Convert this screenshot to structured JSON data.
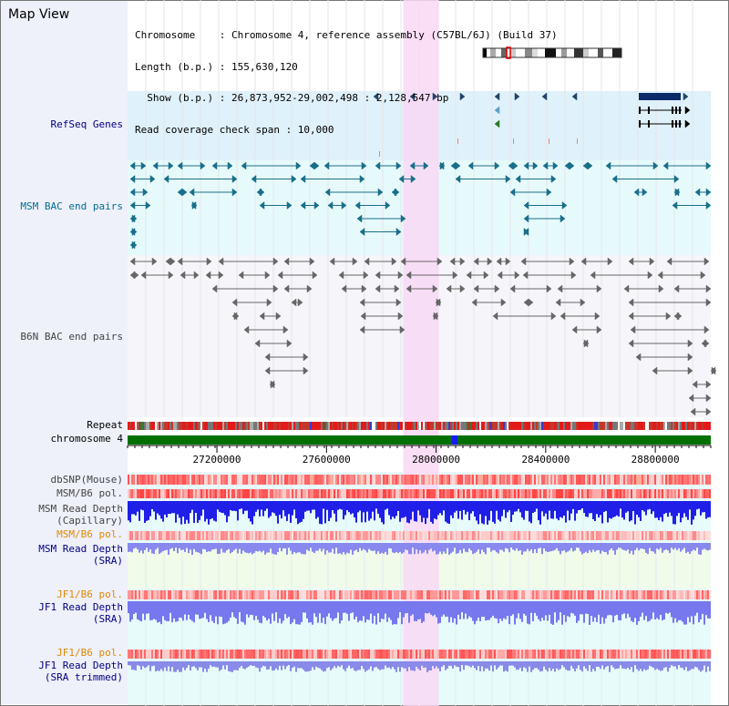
{
  "title": "Map View",
  "header": {
    "line1": "Chromosome    : Chromosome 4, reference assembly (C57BL/6J) (Build 37)",
    "line2": "Length (b.p.) : 155,630,120",
    "line3": "  Show (b.p.) : 26,873,952-29,002,498 : 2,128,547 bp",
    "line4": "Read coverage check span : 10,000"
  },
  "tracks": {
    "refseq": "RefSeq Genes",
    "msm_bac": "MSM BAC end pairs",
    "b6n_bac": "B6N BAC end pairs",
    "repeat": "Repeat",
    "chromosome": "chromosome 4",
    "dbsnp": "dbSNP(Mouse)",
    "msm_b6_pol_1": "MSM/B6 pol.",
    "msm_depth_cap_1": "MSM Read Depth",
    "msm_depth_cap_2": "(Capillary)",
    "msm_b6_pol_2": "MSM/B6 pol.",
    "msm_depth_sra_1": "MSM Read Depth",
    "msm_depth_sra_2": "(SRA)",
    "jf1_b6_pol_1": "JF1/B6 pol.",
    "jf1_depth_sra_1": "JF1 Read Depth",
    "jf1_depth_sra_2": "(SRA)",
    "jf1_b6_pol_2": "JF1/B6 pol.",
    "jf1_depth_trim_1": "JF1 Read Depth",
    "jf1_depth_trim_2": "(SRA trimmed)"
  },
  "colors": {
    "navy_label": "#000080",
    "teal_label": "#006f8f",
    "gray_label": "#444444",
    "orange_label": "#e08a00",
    "refseq_bg": "#dff1fb",
    "msm_bg": "#e6fafc",
    "b6n_bg": "#f5f5fa",
    "highlight": "#f8d8f4",
    "chromosome_bar": "#007000"
  },
  "axis": {
    "show_start": 26873952,
    "show_end": 29002498,
    "ticks": [
      "27200000",
      "27600000",
      "28000000",
      "28400000",
      "28800000"
    ]
  },
  "highlight_region": {
    "start": 27880000,
    "end": 28010000
  }
}
